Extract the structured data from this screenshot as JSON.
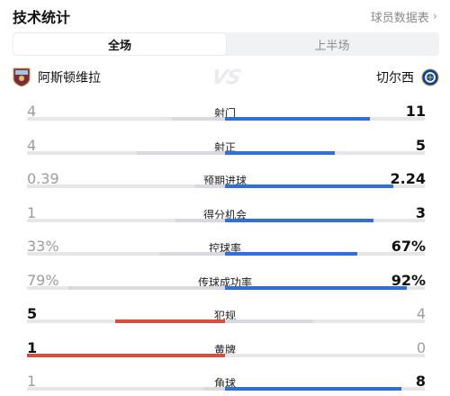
{
  "header": {
    "title": "技术统计",
    "link_label": "球员数据表"
  },
  "tabs": [
    {
      "label": "全场",
      "active": true
    },
    {
      "label": "上半场",
      "active": false
    }
  ],
  "teams": {
    "home": {
      "name": "阿斯顿维拉",
      "crest_icon": "aston-villa-crest-icon",
      "bar_color": "#e04a3d"
    },
    "away": {
      "name": "切尔西",
      "crest_icon": "chelsea-crest-icon",
      "bar_color": "#2f6fd6"
    }
  },
  "neutral_bar_color": "#d7d9de",
  "stats": [
    {
      "label": "射门",
      "home": "4",
      "away": "11",
      "home_num": 4,
      "away_num": 11
    },
    {
      "label": "射正",
      "home": "4",
      "away": "5",
      "home_num": 4,
      "away_num": 5
    },
    {
      "label": "预期进球",
      "home": "0.39",
      "away": "2.24",
      "home_num": 0.39,
      "away_num": 2.24
    },
    {
      "label": "得分机会",
      "home": "1",
      "away": "3",
      "home_num": 1,
      "away_num": 3
    },
    {
      "label": "控球率",
      "home": "33%",
      "away": "67%",
      "home_num": 33,
      "away_num": 67,
      "share_scale": 100
    },
    {
      "label": "传球成功率",
      "home": "79%",
      "away": "92%",
      "home_num": 79,
      "away_num": 92,
      "share_scale": 100
    },
    {
      "label": "犯规",
      "home": "5",
      "away": "4",
      "home_num": 5,
      "away_num": 4
    },
    {
      "label": "黄牌",
      "home": "1",
      "away": "0",
      "home_num": 1,
      "away_num": 0
    },
    {
      "label": "角球",
      "home": "1",
      "away": "8",
      "home_num": 1,
      "away_num": 8
    }
  ]
}
